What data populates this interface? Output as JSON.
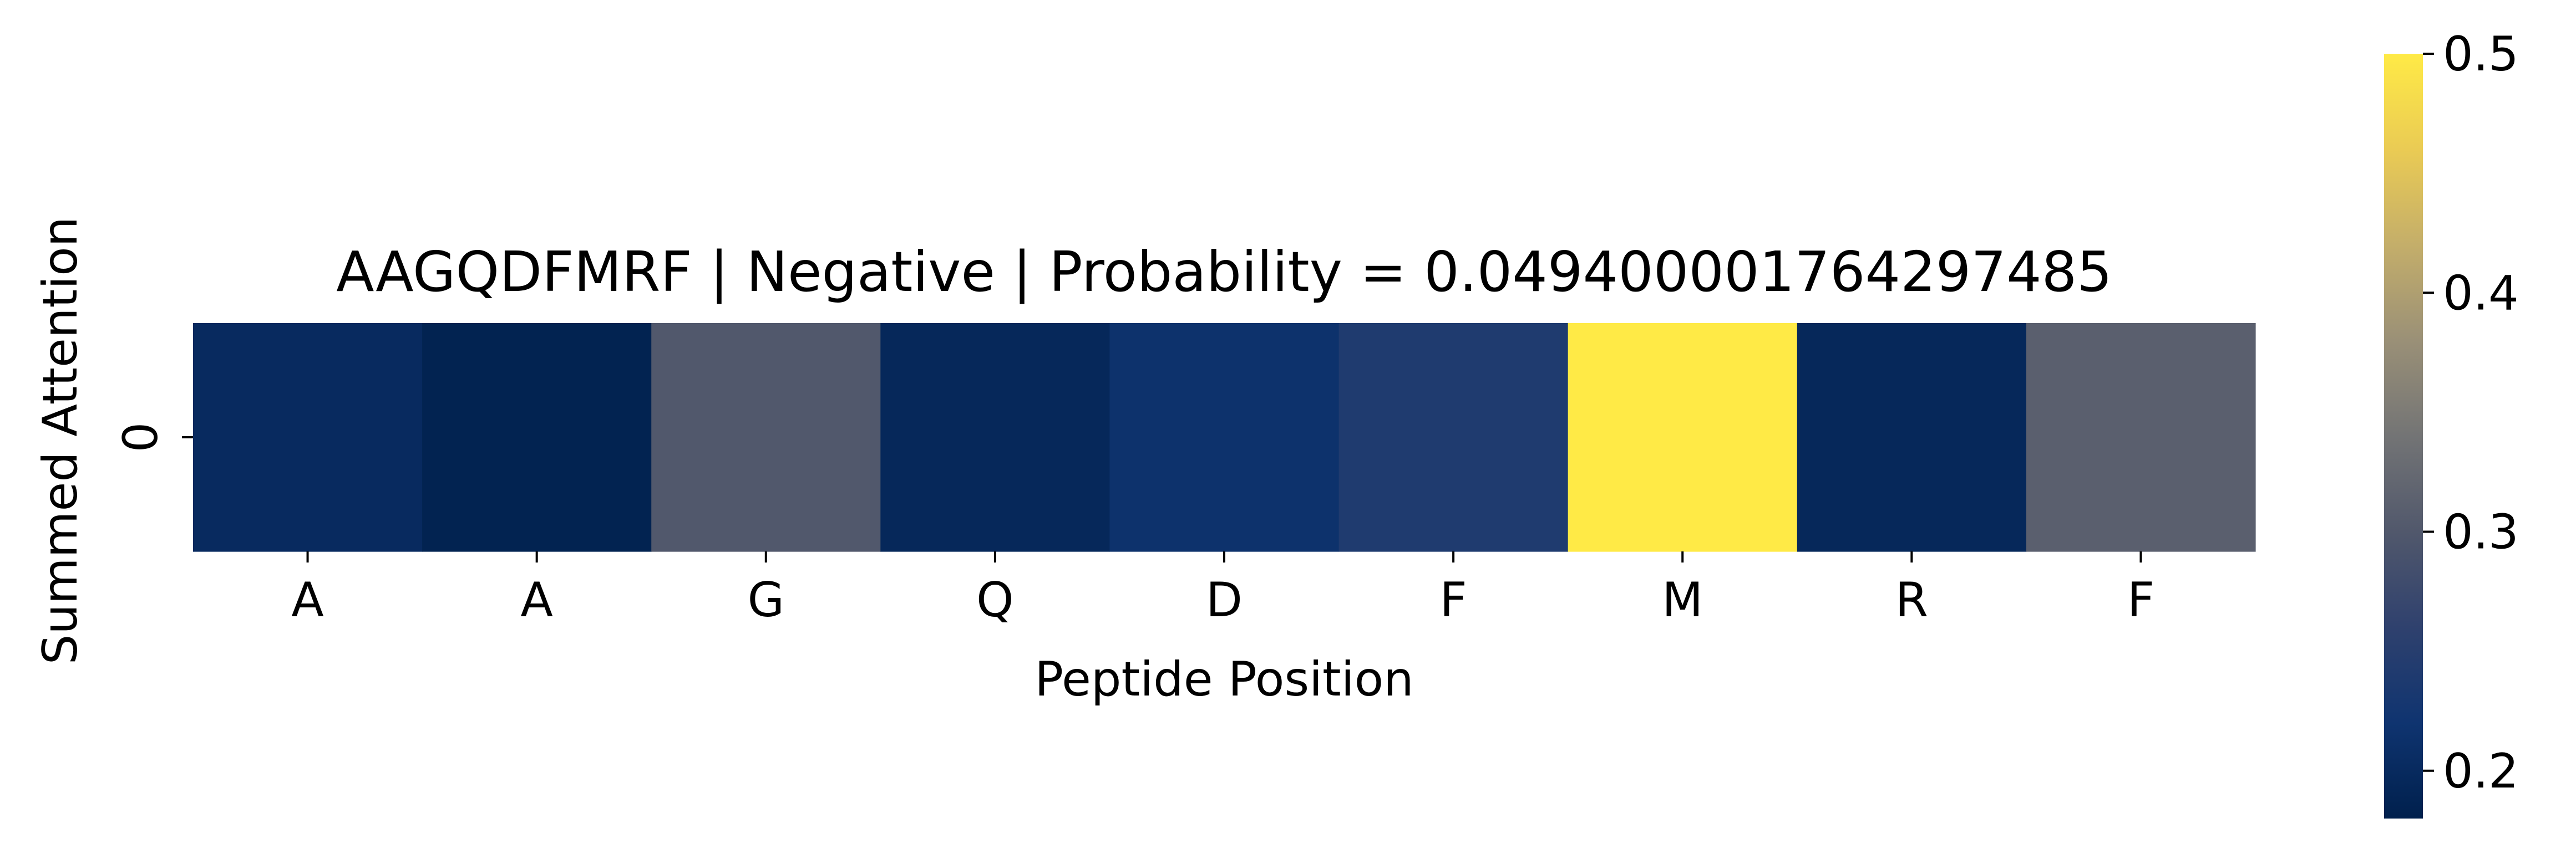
{
  "chart_data": {
    "type": "heatmap",
    "title": "AAGQDFMRF | Negative | Probability = 0.049400001764297485",
    "xlabel": "Peptide Position",
    "ylabel": "Summed Attention",
    "x_tick_labels": [
      "A",
      "A",
      "G",
      "Q",
      "D",
      "F",
      "M",
      "R",
      "F"
    ],
    "y_tick_labels": [
      "0"
    ],
    "values": [
      [
        0.2,
        0.185,
        0.3,
        0.195,
        0.215,
        0.24,
        0.5,
        0.195,
        0.31
      ]
    ],
    "colormap": "cividis",
    "vmin": 0.18,
    "vmax": 0.5,
    "colorbar_ticks": [
      0.2,
      0.3,
      0.4,
      0.5
    ],
    "colorbar_tick_labels": [
      "0.2",
      "0.3",
      "0.4",
      "0.5"
    ],
    "grid": false,
    "legend": "colorbar-right"
  }
}
